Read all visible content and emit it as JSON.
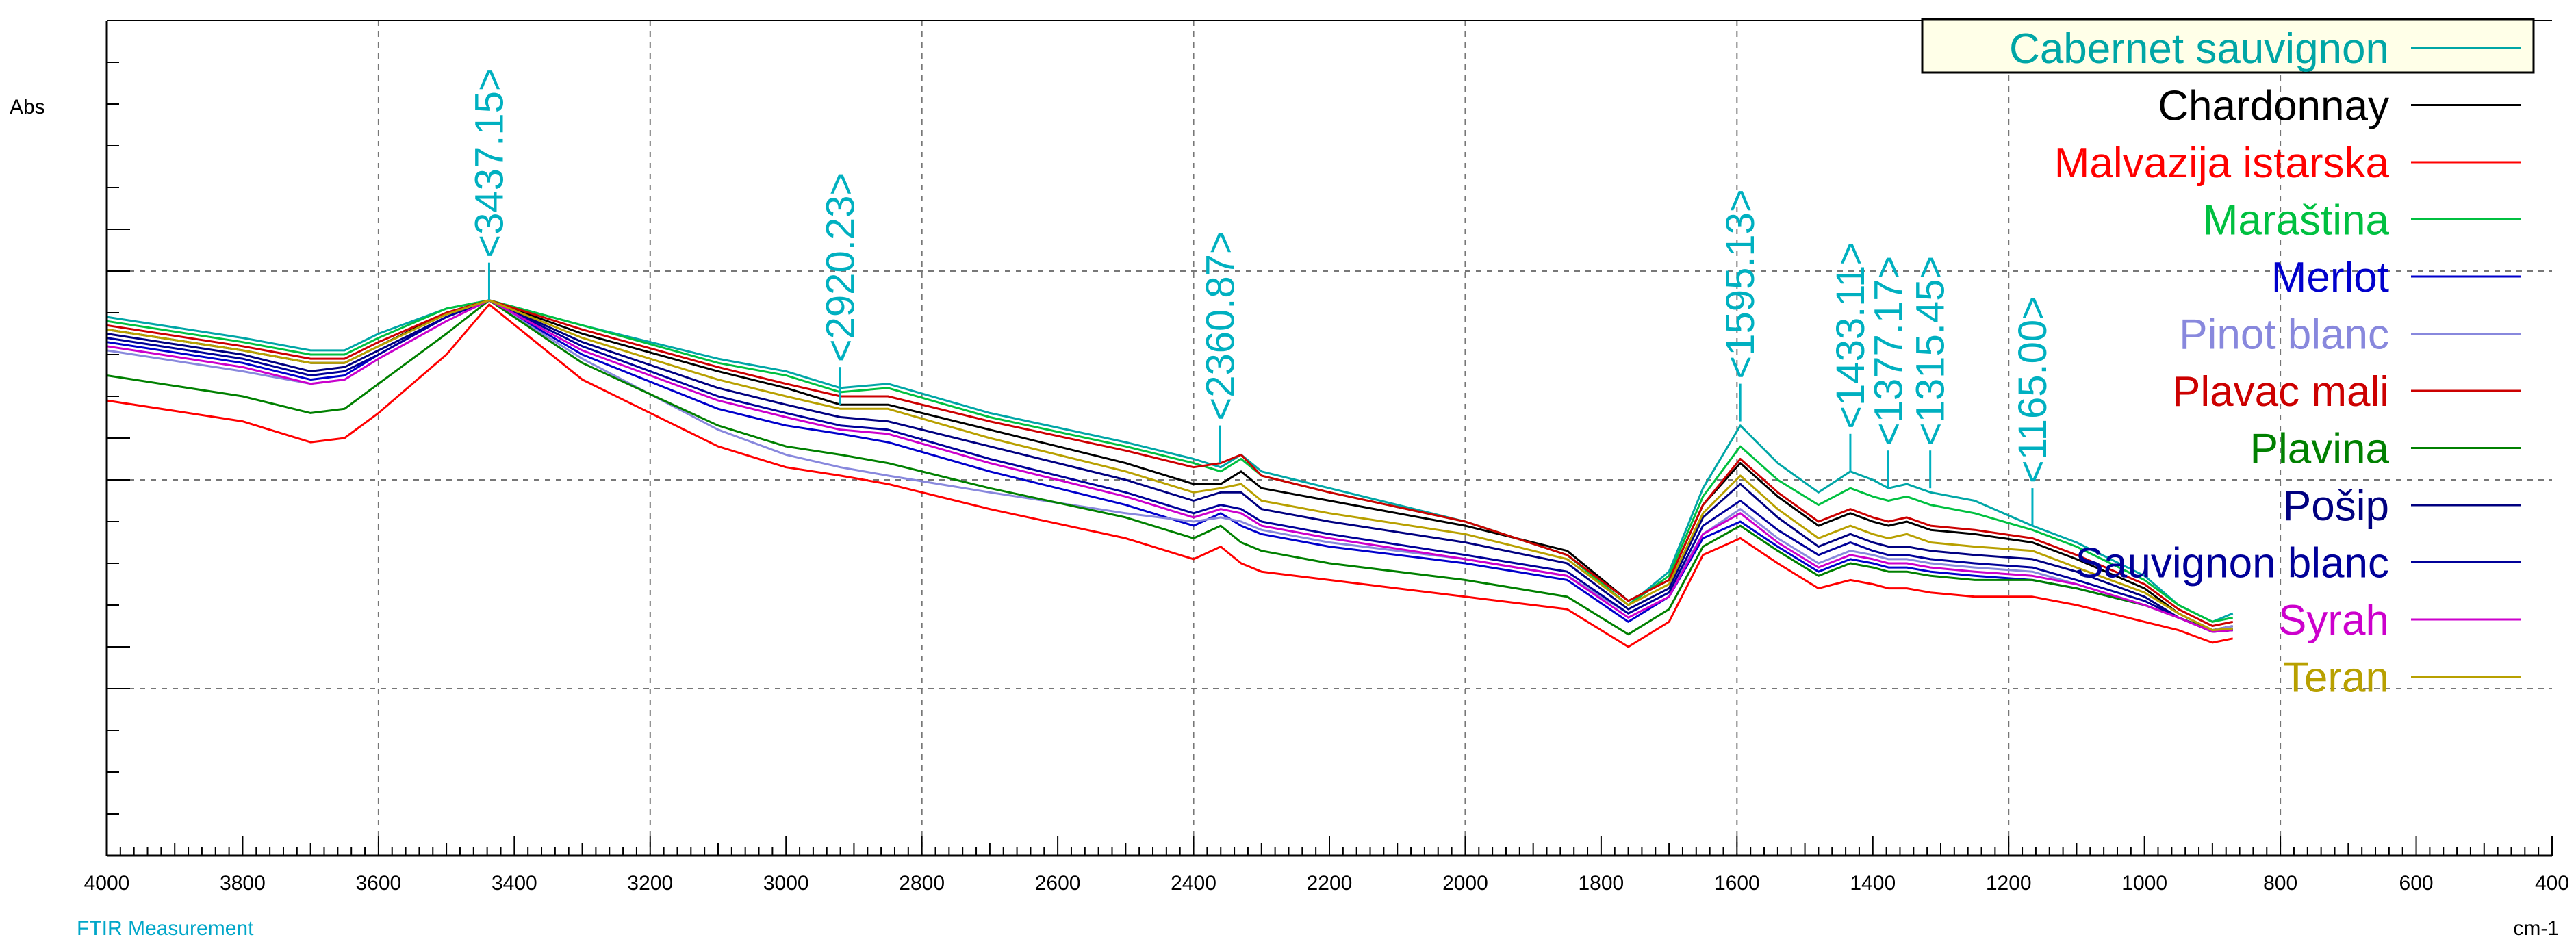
{
  "chart_data": {
    "type": "line",
    "ylabel": "Abs",
    "xlabel": "cm-1",
    "footer": "FTIR Measurement",
    "xlim": [
      4000,
      400
    ],
    "x_reversed": true,
    "ylim": [
      0,
      1
    ],
    "y_ticks_labeled": false,
    "grid": "dashed",
    "legend_position": "top-right",
    "x_ticks": [
      "4000",
      "3800",
      "3600",
      "3400",
      "3200",
      "3000",
      "2800",
      "2600",
      "2400",
      "2200",
      "2000",
      "1800",
      "1600",
      "1400",
      "1200",
      "1000",
      "800",
      "600",
      "400"
    ],
    "peak_labels": [
      {
        "wavenumber": 3437.15,
        "text": "<3437.15>",
        "y": 0.665
      },
      {
        "wavenumber": 2920.23,
        "text": "<2920.23>",
        "y": 0.54
      },
      {
        "wavenumber": 2360.87,
        "text": "<2360.87>",
        "y": 0.47
      },
      {
        "wavenumber": 1595.13,
        "text": "<1595.13>",
        "y": 0.52
      },
      {
        "wavenumber": 1433.11,
        "text": "<1433.11>",
        "y": 0.46
      },
      {
        "wavenumber": 1377.17,
        "text": "<1377.17>",
        "y": 0.44
      },
      {
        "wavenumber": 1315.45,
        "text": "<1315.45>",
        "y": 0.44
      },
      {
        "wavenumber": 1165.0,
        "text": "<1165.00>",
        "y": 0.395
      }
    ],
    "series": [
      {
        "name": "Cabernet sauvignon",
        "color": "#00a6a6",
        "x": [
          4000,
          3800,
          3700,
          3650,
          3600,
          3500,
          3437,
          3300,
          3100,
          3000,
          2920,
          2850,
          2700,
          2500,
          2400,
          2360,
          2330,
          2300,
          2200,
          2000,
          1850,
          1760,
          1700,
          1650,
          1595,
          1540,
          1480,
          1433,
          1400,
          1377,
          1350,
          1315,
          1250,
          1165,
          1100,
          1000,
          950,
          900,
          870
        ],
        "y": [
          0.645,
          0.62,
          0.605,
          0.605,
          0.625,
          0.655,
          0.665,
          0.635,
          0.595,
          0.58,
          0.56,
          0.565,
          0.53,
          0.495,
          0.475,
          0.465,
          0.48,
          0.46,
          0.44,
          0.4,
          0.36,
          0.3,
          0.34,
          0.44,
          0.515,
          0.47,
          0.435,
          0.46,
          0.45,
          0.44,
          0.445,
          0.435,
          0.425,
          0.395,
          0.375,
          0.335,
          0.3,
          0.28,
          0.29
        ]
      },
      {
        "name": "Chardonnay",
        "color": "#000000",
        "x": [
          4000,
          3800,
          3700,
          3650,
          3600,
          3500,
          3437,
          3300,
          3100,
          3000,
          2920,
          2850,
          2700,
          2500,
          2400,
          2360,
          2330,
          2300,
          2200,
          2000,
          1850,
          1760,
          1700,
          1650,
          1595,
          1540,
          1480,
          1433,
          1400,
          1377,
          1350,
          1315,
          1250,
          1165,
          1100,
          1000,
          950,
          900,
          870
        ],
        "y": [
          0.63,
          0.605,
          0.59,
          0.59,
          0.61,
          0.65,
          0.665,
          0.625,
          0.58,
          0.56,
          0.54,
          0.54,
          0.51,
          0.47,
          0.445,
          0.445,
          0.46,
          0.44,
          0.425,
          0.395,
          0.365,
          0.305,
          0.33,
          0.42,
          0.47,
          0.43,
          0.395,
          0.41,
          0.4,
          0.395,
          0.4,
          0.39,
          0.385,
          0.375,
          0.355,
          0.32,
          0.29,
          0.27,
          0.275
        ]
      },
      {
        "name": "Malvazija istarska",
        "color": "#ff0000",
        "x": [
          4000,
          3800,
          3700,
          3650,
          3600,
          3500,
          3437,
          3300,
          3100,
          3000,
          2920,
          2850,
          2700,
          2500,
          2400,
          2360,
          2330,
          2300,
          2200,
          2000,
          1850,
          1760,
          1700,
          1650,
          1595,
          1540,
          1480,
          1433,
          1400,
          1377,
          1350,
          1315,
          1250,
          1165,
          1100,
          1000,
          950,
          900,
          870
        ],
        "y": [
          0.545,
          0.52,
          0.495,
          0.5,
          0.53,
          0.6,
          0.66,
          0.57,
          0.49,
          0.465,
          0.455,
          0.445,
          0.415,
          0.38,
          0.355,
          0.37,
          0.35,
          0.34,
          0.33,
          0.31,
          0.295,
          0.25,
          0.28,
          0.36,
          0.38,
          0.35,
          0.32,
          0.33,
          0.325,
          0.32,
          0.32,
          0.315,
          0.31,
          0.31,
          0.3,
          0.28,
          0.27,
          0.255,
          0.26
        ]
      },
      {
        "name": "Maraština",
        "color": "#00c040",
        "x": [
          4000,
          3800,
          3700,
          3650,
          3600,
          3500,
          3437,
          3300,
          3100,
          3000,
          2920,
          2850,
          2700,
          2500,
          2400,
          2360,
          2330,
          2300,
          2200,
          2000,
          1850,
          1760,
          1700,
          1650,
          1595,
          1540,
          1480,
          1433,
          1400,
          1377,
          1350,
          1315,
          1250,
          1165,
          1100,
          1000,
          950,
          900,
          870
        ],
        "y": [
          0.64,
          0.615,
          0.6,
          0.6,
          0.62,
          0.655,
          0.665,
          0.635,
          0.59,
          0.575,
          0.555,
          0.56,
          0.525,
          0.49,
          0.47,
          0.46,
          0.475,
          0.455,
          0.435,
          0.4,
          0.36,
          0.3,
          0.335,
          0.43,
          0.49,
          0.45,
          0.42,
          0.44,
          0.43,
          0.425,
          0.43,
          0.42,
          0.41,
          0.39,
          0.37,
          0.33,
          0.3,
          0.28,
          0.285
        ]
      },
      {
        "name": "Merlot",
        "color": "#0000cc",
        "x": [
          4000,
          3800,
          3700,
          3650,
          3600,
          3500,
          3437,
          3300,
          3100,
          3000,
          2920,
          2850,
          2700,
          2500,
          2400,
          2360,
          2330,
          2300,
          2200,
          2000,
          1850,
          1760,
          1700,
          1650,
          1595,
          1540,
          1480,
          1433,
          1400,
          1377,
          1350,
          1315,
          1250,
          1165,
          1100,
          1000,
          950,
          900,
          870
        ],
        "y": [
          0.615,
          0.59,
          0.57,
          0.575,
          0.6,
          0.645,
          0.665,
          0.6,
          0.535,
          0.515,
          0.505,
          0.495,
          0.46,
          0.42,
          0.395,
          0.41,
          0.395,
          0.385,
          0.37,
          0.35,
          0.33,
          0.28,
          0.31,
          0.38,
          0.4,
          0.37,
          0.34,
          0.355,
          0.35,
          0.345,
          0.345,
          0.34,
          0.335,
          0.33,
          0.32,
          0.3,
          0.285,
          0.27,
          0.272
        ]
      },
      {
        "name": "Pinot blanc",
        "color": "#8888dd",
        "x": [
          4000,
          3800,
          3700,
          3650,
          3600,
          3500,
          3437,
          3300,
          3100,
          3000,
          2920,
          2850,
          2700,
          2500,
          2400,
          2360,
          2330,
          2300,
          2200,
          2000,
          1850,
          1760,
          1700,
          1650,
          1595,
          1540,
          1480,
          1433,
          1400,
          1377,
          1350,
          1315,
          1250,
          1165,
          1100,
          1000,
          950,
          900,
          870
        ],
        "y": [
          0.605,
          0.58,
          0.565,
          0.57,
          0.595,
          0.64,
          0.665,
          0.595,
          0.51,
          0.48,
          0.465,
          0.455,
          0.435,
          0.41,
          0.4,
          0.405,
          0.4,
          0.39,
          0.375,
          0.355,
          0.335,
          0.29,
          0.315,
          0.385,
          0.415,
          0.38,
          0.35,
          0.365,
          0.36,
          0.355,
          0.355,
          0.35,
          0.345,
          0.34,
          0.325,
          0.3,
          0.285,
          0.27,
          0.275
        ]
      },
      {
        "name": "Plavac mali",
        "color": "#cc0000",
        "x": [
          4000,
          3800,
          3700,
          3650,
          3600,
          3500,
          3437,
          3300,
          3100,
          3000,
          2920,
          2850,
          2700,
          2500,
          2400,
          2360,
          2330,
          2300,
          2200,
          2000,
          1850,
          1760,
          1700,
          1650,
          1595,
          1540,
          1480,
          1433,
          1400,
          1377,
          1350,
          1315,
          1250,
          1165,
          1100,
          1000,
          950,
          900,
          870
        ],
        "y": [
          0.635,
          0.61,
          0.595,
          0.595,
          0.615,
          0.65,
          0.665,
          0.63,
          0.585,
          0.565,
          0.55,
          0.55,
          0.52,
          0.485,
          0.465,
          0.47,
          0.48,
          0.455,
          0.435,
          0.4,
          0.36,
          0.305,
          0.33,
          0.42,
          0.475,
          0.435,
          0.4,
          0.415,
          0.405,
          0.4,
          0.405,
          0.395,
          0.39,
          0.38,
          0.36,
          0.325,
          0.295,
          0.275,
          0.28
        ]
      },
      {
        "name": "Plavina",
        "color": "#008000",
        "x": [
          4000,
          3800,
          3700,
          3650,
          3600,
          3500,
          3437,
          3300,
          3100,
          3000,
          2920,
          2850,
          2700,
          2500,
          2400,
          2360,
          2330,
          2300,
          2200,
          2000,
          1850,
          1760,
          1700,
          1650,
          1595,
          1540,
          1480,
          1433,
          1400,
          1377,
          1350,
          1315,
          1250,
          1165,
          1100,
          1000,
          950,
          900,
          870
        ],
        "y": [
          0.575,
          0.55,
          0.53,
          0.535,
          0.565,
          0.625,
          0.665,
          0.59,
          0.515,
          0.49,
          0.48,
          0.47,
          0.44,
          0.405,
          0.38,
          0.395,
          0.375,
          0.365,
          0.35,
          0.33,
          0.31,
          0.265,
          0.295,
          0.37,
          0.395,
          0.365,
          0.335,
          0.35,
          0.345,
          0.34,
          0.34,
          0.335,
          0.33,
          0.33,
          0.32,
          0.3,
          0.285,
          0.27,
          0.272
        ]
      },
      {
        "name": "Pošip",
        "color": "#000080",
        "x": [
          4000,
          3800,
          3700,
          3650,
          3600,
          3500,
          3437,
          3300,
          3100,
          3000,
          2920,
          2850,
          2700,
          2500,
          2400,
          2360,
          2330,
          2300,
          2200,
          2000,
          1850,
          1760,
          1700,
          1650,
          1595,
          1540,
          1480,
          1433,
          1400,
          1377,
          1350,
          1315,
          1250,
          1165,
          1100,
          1000,
          950,
          900,
          870
        ],
        "y": [
          0.625,
          0.6,
          0.58,
          0.585,
          0.605,
          0.645,
          0.665,
          0.615,
          0.56,
          0.54,
          0.525,
          0.52,
          0.49,
          0.45,
          0.425,
          0.435,
          0.435,
          0.415,
          0.4,
          0.375,
          0.35,
          0.295,
          0.32,
          0.405,
          0.445,
          0.405,
          0.37,
          0.385,
          0.375,
          0.37,
          0.37,
          0.365,
          0.36,
          0.355,
          0.34,
          0.31,
          0.285,
          0.268,
          0.27
        ]
      },
      {
        "name": "Sauvignon blanc",
        "color": "#000099",
        "x": [
          4000,
          3800,
          3700,
          3650,
          3600,
          3500,
          3437,
          3300,
          3100,
          3000,
          2920,
          2850,
          2700,
          2500,
          2400,
          2360,
          2330,
          2300,
          2200,
          2000,
          1850,
          1760,
          1700,
          1650,
          1595,
          1540,
          1480,
          1433,
          1400,
          1377,
          1350,
          1315,
          1250,
          1165,
          1100,
          1000,
          950,
          900,
          870
        ],
        "y": [
          0.62,
          0.595,
          0.575,
          0.58,
          0.6,
          0.645,
          0.665,
          0.61,
          0.55,
          0.53,
          0.515,
          0.51,
          0.475,
          0.435,
          0.41,
          0.42,
          0.415,
          0.4,
          0.385,
          0.36,
          0.34,
          0.29,
          0.315,
          0.395,
          0.425,
          0.39,
          0.36,
          0.375,
          0.365,
          0.36,
          0.36,
          0.355,
          0.35,
          0.345,
          0.33,
          0.305,
          0.285,
          0.268,
          0.27
        ]
      },
      {
        "name": "Syrah",
        "color": "#cc00cc",
        "x": [
          4000,
          3800,
          3700,
          3650,
          3600,
          3500,
          3437,
          3300,
          3100,
          3000,
          2920,
          2850,
          2700,
          2500,
          2400,
          2360,
          2330,
          2300,
          2200,
          2000,
          1850,
          1760,
          1700,
          1650,
          1595,
          1540,
          1480,
          1433,
          1400,
          1377,
          1350,
          1315,
          1250,
          1165,
          1100,
          1000,
          950,
          900,
          870
        ],
        "y": [
          0.61,
          0.585,
          0.565,
          0.57,
          0.595,
          0.64,
          0.665,
          0.605,
          0.545,
          0.525,
          0.51,
          0.505,
          0.47,
          0.43,
          0.405,
          0.415,
          0.41,
          0.395,
          0.38,
          0.355,
          0.335,
          0.285,
          0.31,
          0.385,
          0.41,
          0.375,
          0.345,
          0.36,
          0.355,
          0.35,
          0.35,
          0.345,
          0.34,
          0.335,
          0.325,
          0.3,
          0.285,
          0.268,
          0.27
        ]
      },
      {
        "name": "Teran",
        "color": "#b8a000",
        "x": [
          4000,
          3800,
          3700,
          3650,
          3600,
          3500,
          3437,
          3300,
          3100,
          3000,
          2920,
          2850,
          2700,
          2500,
          2400,
          2360,
          2330,
          2300,
          2200,
          2000,
          1850,
          1760,
          1700,
          1650,
          1595,
          1540,
          1480,
          1433,
          1400,
          1377,
          1350,
          1315,
          1250,
          1165,
          1100,
          1000,
          950,
          900,
          870
        ],
        "y": [
          0.63,
          0.605,
          0.59,
          0.59,
          0.61,
          0.648,
          0.665,
          0.62,
          0.57,
          0.55,
          0.535,
          0.535,
          0.5,
          0.46,
          0.435,
          0.44,
          0.445,
          0.425,
          0.41,
          0.385,
          0.355,
          0.3,
          0.325,
          0.41,
          0.455,
          0.415,
          0.38,
          0.395,
          0.385,
          0.38,
          0.385,
          0.375,
          0.37,
          0.365,
          0.345,
          0.315,
          0.29,
          0.27,
          0.272
        ]
      }
    ]
  }
}
